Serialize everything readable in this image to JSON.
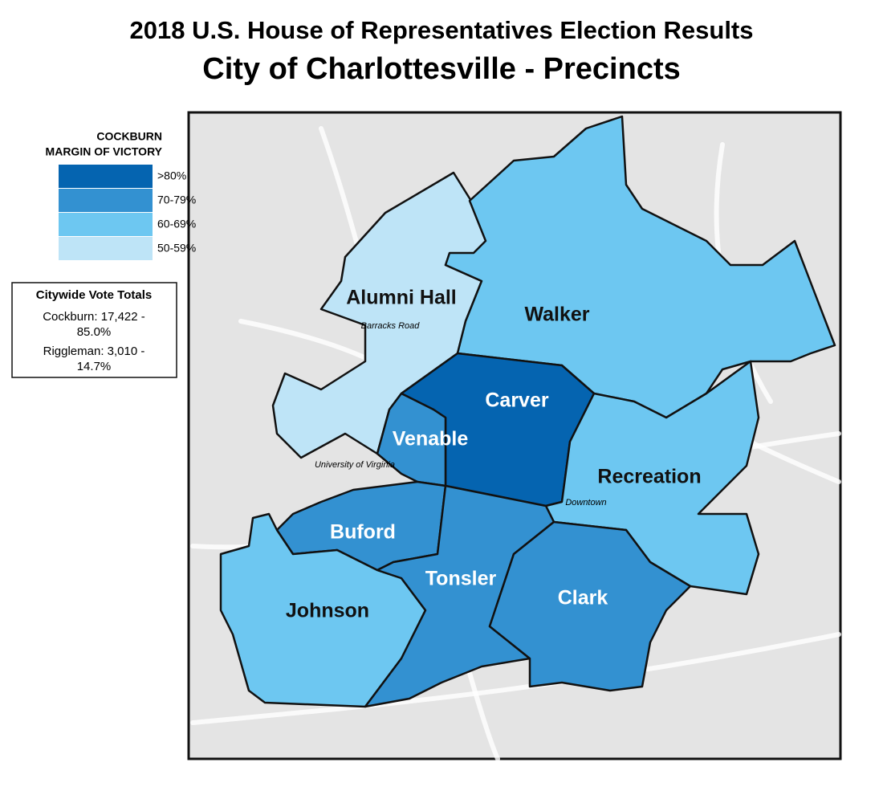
{
  "header": {
    "title": "2018 U.S. House of Representatives Election Results",
    "subtitle": "City of Charlottesville - Precincts"
  },
  "legend": {
    "title": [
      "COCKBURN",
      "MARGIN OF VICTORY"
    ],
    "items": [
      {
        "label": ">80%",
        "color": "#0564b0"
      },
      {
        "label": "70-79%",
        "color": "#3391d1"
      },
      {
        "label": "60-69%",
        "color": "#6dc7f1"
      },
      {
        "label": "50-59%",
        "color": "#bee4f7"
      }
    ]
  },
  "totals": {
    "title": "Citywide Vote Totals",
    "lines": [
      "Cockburn: 17,422 -",
      "85.0%",
      "Riggleman: 3,010 -",
      "14.7%"
    ]
  },
  "precincts": [
    {
      "name": "Alumni Hall",
      "color": "#bee4f7"
    },
    {
      "name": "Walker",
      "color": "#6dc7f1"
    },
    {
      "name": "Carver",
      "color": "#0564b0"
    },
    {
      "name": "Venable",
      "color": "#3391d1"
    },
    {
      "name": "Recreation",
      "color": "#6dc7f1"
    },
    {
      "name": "Buford",
      "color": "#3391d1"
    },
    {
      "name": "Johnson",
      "color": "#6dc7f1"
    },
    {
      "name": "Tonsler",
      "color": "#3391d1"
    },
    {
      "name": "Clark",
      "color": "#3391d1"
    }
  ],
  "places": [
    "Barracks Road",
    "University of Virginia",
    "Downtown"
  ]
}
